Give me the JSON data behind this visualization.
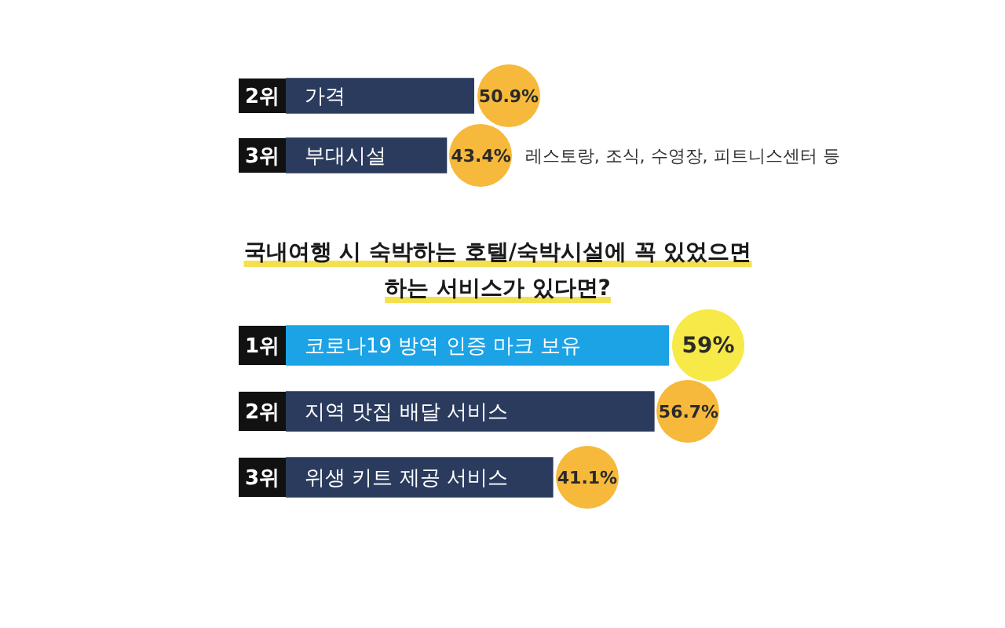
{
  "chart_data": [
    {
      "type": "bar",
      "orientation": "horizontal",
      "categories": [
        "가격",
        "부대시설"
      ],
      "values": [
        50.9,
        43.4
      ],
      "value_labels": [
        "50.9%",
        "43.4%"
      ],
      "color": "#2b3b5e",
      "tick_labels": "y",
      "annotations": [
        {
          "text": "2위",
          "y": "가격"
        },
        {
          "text": "3위",
          "y": "부대시설"
        },
        "레스토랑, 조식, 수영장, 피트니스센터 등"
      ]
    },
    {
      "type": "bar",
      "orientation": "horizontal",
      "title": "국내여행 시 숙박하는 호텔/숙박시설에 꼭 있었으면 하는 서비스가 있다면?",
      "categories": [
        "코로나19 방역 인증 마크 보유",
        "지역 맛집 배달 서비스",
        "위생 키트 제공 서비스"
      ],
      "values": [
        59,
        56.7,
        41.1
      ],
      "value_labels": [
        "59%",
        "56.7%",
        "41.1%"
      ],
      "colors": [
        "#1ba3e6",
        "#2b3b5e",
        "#2b3b5e"
      ],
      "tick_labels": "y",
      "annotations": [
        {
          "text": "1위",
          "y": "코로나19 방역 인증 마크 보유"
        },
        {
          "text": "2위",
          "y": "지역 맛집 배달 서비스"
        },
        {
          "text": "3위",
          "y": "위생 키트 제공 서비스"
        }
      ]
    }
  ]
}
